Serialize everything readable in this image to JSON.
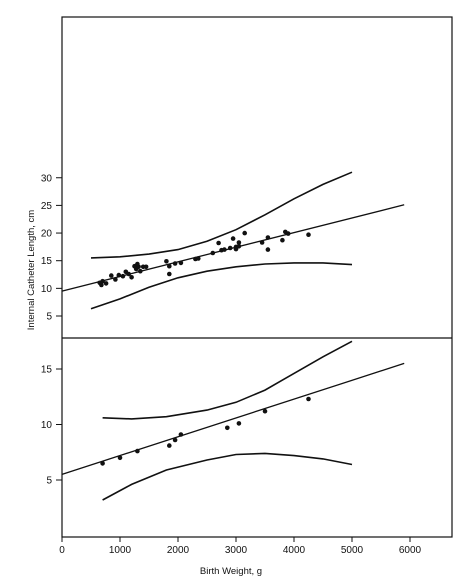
{
  "chart_data": [
    {
      "type": "scatter",
      "panel": "top",
      "title": "",
      "ylabel": "Internal Catheter Length, cm",
      "xlabel": "",
      "xlim": [
        0,
        7000
      ],
      "ylim": [
        2,
        32
      ],
      "yticks": [
        "5",
        "10",
        "15",
        "20",
        "25",
        "30"
      ],
      "series": [
        {
          "points": [
            [
              650,
              11.0
            ],
            [
              680,
              10.6
            ],
            [
              700,
              11.3
            ],
            [
              760,
              10.9
            ],
            [
              850,
              12.3
            ],
            [
              920,
              11.6
            ],
            [
              980,
              12.4
            ],
            [
              1050,
              12.2
            ],
            [
              1100,
              13.0
            ],
            [
              1150,
              12.6
            ],
            [
              1200,
              12.0
            ],
            [
              1250,
              14.0
            ],
            [
              1280,
              13.5
            ],
            [
              1300,
              14.4
            ],
            [
              1320,
              13.9
            ],
            [
              1350,
              13.1
            ],
            [
              1400,
              13.9
            ],
            [
              1450,
              13.9
            ],
            [
              1800,
              14.9
            ],
            [
              1850,
              12.6
            ],
            [
              1850,
              14.0
            ],
            [
              1950,
              14.5
            ],
            [
              2050,
              14.6
            ],
            [
              2300,
              15.3
            ],
            [
              2350,
              15.4
            ],
            [
              2600,
              16.4
            ],
            [
              2700,
              18.2
            ],
            [
              2750,
              16.9
            ],
            [
              2800,
              17.0
            ],
            [
              2900,
              17.3
            ],
            [
              2950,
              19.0
            ],
            [
              3000,
              17.5
            ],
            [
              3000,
              17.1
            ],
            [
              3050,
              17.6
            ],
            [
              3050,
              18.3
            ],
            [
              3150,
              20.0
            ],
            [
              3450,
              18.3
            ],
            [
              3550,
              17.0
            ],
            [
              3550,
              19.2
            ],
            [
              3800,
              18.7
            ],
            [
              3850,
              20.2
            ],
            [
              3900,
              19.9
            ],
            [
              4250,
              19.7
            ]
          ]
        }
      ],
      "regression_line": [
        [
          0,
          9.5
        ],
        [
          5900,
          25.1
        ]
      ],
      "upper_band": [
        [
          500,
          15.5
        ],
        [
          1000,
          15.7
        ],
        [
          1500,
          16.2
        ],
        [
          2000,
          17.0
        ],
        [
          2500,
          18.5
        ],
        [
          3000,
          20.6
        ],
        [
          3500,
          23.3
        ],
        [
          4000,
          26.2
        ],
        [
          4500,
          28.8
        ],
        [
          5000,
          31.0
        ]
      ],
      "lower_band": [
        [
          500,
          6.3
        ],
        [
          1000,
          8.1
        ],
        [
          1500,
          10.2
        ],
        [
          2000,
          11.9
        ],
        [
          2500,
          13.1
        ],
        [
          3000,
          13.9
        ],
        [
          3500,
          14.4
        ],
        [
          4000,
          14.6
        ],
        [
          4500,
          14.6
        ],
        [
          5000,
          14.3
        ]
      ]
    },
    {
      "type": "scatter",
      "panel": "bottom",
      "title": "",
      "xlabel": "Birth Weight, g",
      "ylabel": "",
      "xlim": [
        0,
        7000
      ],
      "ylim": [
        0.5,
        18
      ],
      "xticks": [
        "0",
        "1000",
        "2000",
        "3000",
        "4000",
        "5000",
        "6000"
      ],
      "yticks": [
        "5",
        "10",
        "15"
      ],
      "series": [
        {
          "points": [
            [
              700,
              6.5
            ],
            [
              1000,
              7.0
            ],
            [
              1300,
              7.6
            ],
            [
              1850,
              8.1
            ],
            [
              1950,
              8.6
            ],
            [
              2050,
              9.1
            ],
            [
              2850,
              9.7
            ],
            [
              3050,
              10.1
            ],
            [
              3500,
              11.2
            ],
            [
              4250,
              12.3
            ]
          ]
        }
      ],
      "regression_line": [
        [
          0,
          5.5
        ],
        [
          5900,
          15.5
        ]
      ],
      "upper_band": [
        [
          700,
          10.6
        ],
        [
          1200,
          10.5
        ],
        [
          1800,
          10.7
        ],
        [
          2500,
          11.3
        ],
        [
          3000,
          12.0
        ],
        [
          3500,
          13.1
        ],
        [
          4000,
          14.6
        ],
        [
          4500,
          16.1
        ],
        [
          5000,
          17.5
        ]
      ],
      "lower_band": [
        [
          700,
          3.2
        ],
        [
          1200,
          4.6
        ],
        [
          1800,
          5.9
        ],
        [
          2500,
          6.8
        ],
        [
          3000,
          7.3
        ],
        [
          3500,
          7.4
        ],
        [
          4000,
          7.2
        ],
        [
          4500,
          6.9
        ],
        [
          5000,
          6.4
        ]
      ]
    }
  ]
}
